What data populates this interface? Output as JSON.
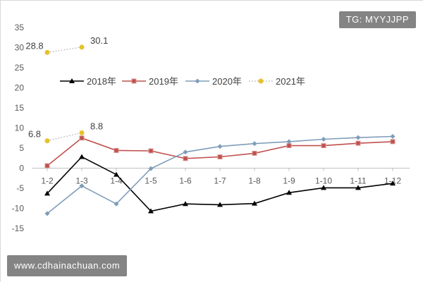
{
  "watermarks": {
    "top_right": "TG: MYYJJPP",
    "bottom_left": "www.cdhainachuan.com"
  },
  "colors": {
    "series_2018": "#000000",
    "series_2019": "#c0504d",
    "series_2020": "#7f9db9",
    "series_2021": "#e6c229",
    "axis": "#bfbfbf",
    "tick_text": "#595959"
  },
  "chart_data": {
    "type": "line",
    "title": "",
    "xlabel": "",
    "ylabel": "",
    "ylim": [
      -15,
      35
    ],
    "yticks": [
      35,
      30,
      25,
      20,
      15,
      10,
      5,
      0,
      -5,
      -10,
      -15
    ],
    "grid": false,
    "legend_position": "upper-left-inside",
    "categories": [
      "1-2",
      "1-3",
      "1-4",
      "1-5",
      "1-6",
      "1-7",
      "1-8",
      "1-9",
      "1-10",
      "1-11",
      "1-12"
    ],
    "series": [
      {
        "name": "2018年",
        "values": [
          -6.3,
          2.8,
          -1.6,
          -10.7,
          -8.9,
          -9.1,
          -8.8,
          -6.1,
          -4.9,
          -4.9,
          -3.8
        ],
        "marker": "triangle",
        "line_style": "solid"
      },
      {
        "name": "2019年",
        "values": [
          0.6,
          7.5,
          4.4,
          4.3,
          2.4,
          2.8,
          3.7,
          5.6,
          5.6,
          6.2,
          6.6
        ],
        "marker": "square",
        "line_style": "solid"
      },
      {
        "name": "2020年",
        "values": [
          -11.3,
          -4.4,
          -8.9,
          -0.1,
          4.0,
          5.4,
          6.1,
          6.6,
          7.2,
          7.6,
          7.9
        ],
        "marker": "diamond",
        "line_style": "solid"
      },
      {
        "name": "2021年",
        "values": [
          6.8,
          8.8,
          null,
          null,
          null,
          null,
          null,
          null,
          null,
          null,
          null
        ],
        "marker": "circle",
        "line_style": "dotted",
        "data_labels": [
          "6.8",
          "8.8"
        ]
      },
      {
        "name": "",
        "values": [
          28.8,
          30.1,
          null,
          null,
          null,
          null,
          null,
          null,
          null,
          null,
          null
        ],
        "marker": "circle",
        "line_style": "dotted",
        "data_labels": [
          "28.8",
          "30.1"
        ],
        "color_key": "series_2021"
      }
    ]
  }
}
